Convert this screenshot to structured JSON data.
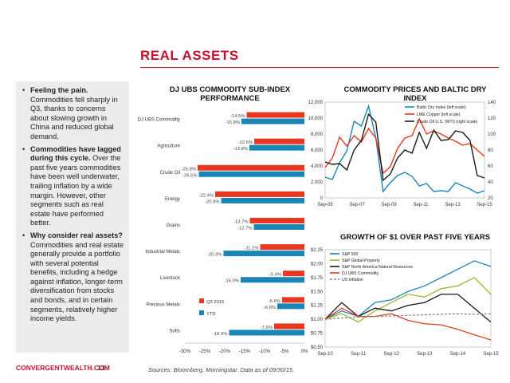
{
  "page": {
    "title": "REAL ASSETS",
    "footer_brand": "CONVERGENTWEALTH.COM",
    "footer_sep": "|",
    "footer_page": "13",
    "sources": "Sources: Bloomberg, Morningstar. Data as of 09/30/15."
  },
  "sidebar": {
    "bullets": [
      {
        "head": "Feeling the pain.",
        "body": " Commodities fell sharply in Q3, thanks to concerns about slowing growth in China and reduced global demand."
      },
      {
        "head": "Commodities have lagged during this cycle.",
        "body": " Over the past five years commodities have been well underwater, trailing inflation by a wide margin. However, other segments such as real estate have performed better."
      },
      {
        "head": "Why consider real assets?",
        "body": " Commodities and real estate generally provide a portfolio with several potential benefits, including a hedge against inflation, longer-term diversification from stocks and bonds, and in certain segments, relatively higher income yields."
      }
    ]
  },
  "colors": {
    "accent": "#c8102e",
    "q3": "#e8381f",
    "ytd": "#1a86b8",
    "baltic": "#1a86b8",
    "copper": "#e8381f",
    "crude": "#1a1a1a",
    "sp500": "#1a86b8",
    "property": "#9cb82e",
    "natres": "#1a1a1a",
    "djubs": "#e8381f",
    "inflation": "#888888"
  },
  "chart_data": [
    {
      "type": "bar",
      "title": "DJ UBS COMMODITY SUB-INDEX PERFORMANCE",
      "orientation": "horizontal",
      "categories": [
        "DJ UBS Commodity",
        "Agriculture",
        "Crude Oil",
        "Energy",
        "Grains",
        "Industrial Metals",
        "Livestock",
        "Precious Metals",
        "Softs"
      ],
      "series": [
        {
          "name": "Q3 2015",
          "values": [
            -14.5,
            -12.6,
            -26.8,
            -22.4,
            -13.7,
            -11.1,
            -5.4,
            -5.6,
            -7.6
          ]
        },
        {
          "name": "YTD",
          "values": [
            -15.8,
            -13.8,
            -26.5,
            -20.9,
            -12.7,
            -20.3,
            -16.0,
            -6.8,
            -18.9
          ]
        }
      ],
      "value_labels": [
        [
          "-14.5%",
          "-12.6%",
          "-26.8%",
          "-22.4%",
          "-13.7%",
          "-11.1%",
          "-5.4%",
          "-5.6%",
          "-7.6%"
        ],
        [
          "-15.8%",
          "-13.8%",
          "-26.5%",
          "-20.9%",
          "-12.7%",
          "-20.3%",
          "-16.0%",
          "-6.8%",
          "-18.9%"
        ]
      ],
      "xlim": [
        -30,
        0
      ],
      "xticks": [
        "-30%",
        "-25%",
        "-20%",
        "-15%",
        "-10%",
        "-5%",
        "0%"
      ],
      "legend_position": "bottom-left"
    },
    {
      "type": "line",
      "title": "COMMODITY PRICES AND BALTIC DRY INDEX",
      "x": [
        "Sep-05",
        "Mar-06",
        "Sep-06",
        "Mar-07",
        "Sep-07",
        "Jan-08",
        "May-08",
        "Aug-08",
        "Dec-08",
        "Mar-09",
        "Sep-09",
        "Mar-10",
        "Sep-10",
        "Mar-11",
        "Sep-11",
        "Mar-12",
        "Sep-12",
        "Mar-13",
        "Sep-13",
        "Mar-14",
        "Sep-14",
        "Mar-15",
        "Sep-15"
      ],
      "xticks": [
        "Sep-05",
        "Sep-07",
        "Sep-09",
        "Sep-11",
        "Sep-13",
        "Sep-15"
      ],
      "left_yticks": [
        "0",
        "2,000",
        "4,000",
        "6,000",
        "8,000",
        "10,000",
        "12,000"
      ],
      "right_yticks": [
        "20",
        "40",
        "60",
        "80",
        "100",
        "120",
        "140"
      ],
      "ylim_left": [
        0,
        12000
      ],
      "ylim_right": [
        20,
        140
      ],
      "series": [
        {
          "name": "Baltic Dry Index (left scale)",
          "axis": "left",
          "values": [
            2600,
            2300,
            4400,
            5900,
            9600,
            9000,
            11500,
            7500,
            800,
            1900,
            2800,
            3200,
            2700,
            1500,
            1800,
            800,
            900,
            800,
            1900,
            1500,
            1100,
            600,
            900
          ]
        },
        {
          "name": "LME Copper (left scale)",
          "axis": "left",
          "values": [
            3800,
            5000,
            7600,
            6500,
            7800,
            7000,
            8700,
            7500,
            3100,
            3900,
            6200,
            7500,
            7800,
            9900,
            8000,
            8400,
            8000,
            7500,
            7100,
            6600,
            6800,
            6000,
            5200
          ]
        },
        {
          "name": "Crude Oil U.S. (WTI) (right scale)",
          "axis": "right",
          "values": [
            65,
            62,
            63,
            55,
            80,
            92,
            125,
            115,
            42,
            50,
            70,
            80,
            76,
            102,
            82,
            105,
            92,
            93,
            104,
            102,
            92,
            48,
            45
          ]
        }
      ],
      "legend_position": "top-right"
    },
    {
      "type": "line",
      "title": "GROWTH OF $1 OVER PAST FIVE YEARS",
      "x": [
        "Sep-10",
        "Mar-11",
        "Sep-11",
        "Mar-12",
        "Sep-12",
        "Mar-13",
        "Sep-13",
        "Mar-14",
        "Sep-14",
        "Mar-15",
        "Sep-15"
      ],
      "xticks": [
        "Sep-10",
        "Sep-11",
        "Sep-12",
        "Sep-13",
        "Sep-14",
        "Sep-15"
      ],
      "yticks": [
        "$0.50",
        "$0.75",
        "$1.00",
        "$1.25",
        "$1.50",
        "$1.75",
        "$2.00",
        "$2.25"
      ],
      "ylim": [
        0.5,
        2.25
      ],
      "series": [
        {
          "name": "S&P 500",
          "values": [
            1.0,
            1.15,
            1.05,
            1.3,
            1.35,
            1.5,
            1.6,
            1.75,
            1.9,
            2.05,
            1.95
          ]
        },
        {
          "name": "S&P Global Property",
          "values": [
            1.0,
            1.1,
            0.95,
            1.15,
            1.3,
            1.45,
            1.4,
            1.55,
            1.6,
            1.75,
            1.45
          ]
        },
        {
          "name": "S&P North America Natural Resources",
          "values": [
            1.0,
            1.3,
            1.05,
            1.2,
            1.15,
            1.25,
            1.3,
            1.45,
            1.45,
            1.2,
            0.95
          ]
        },
        {
          "name": "DJ UBS Commodity",
          "values": [
            1.0,
            1.2,
            1.05,
            1.05,
            1.1,
            0.98,
            0.92,
            0.9,
            0.82,
            0.72,
            0.63
          ]
        },
        {
          "name": "US Inflation",
          "values": [
            1.0,
            1.02,
            1.04,
            1.05,
            1.06,
            1.07,
            1.08,
            1.09,
            1.1,
            1.09,
            1.1
          ]
        }
      ],
      "legend_position": "top-left"
    }
  ]
}
